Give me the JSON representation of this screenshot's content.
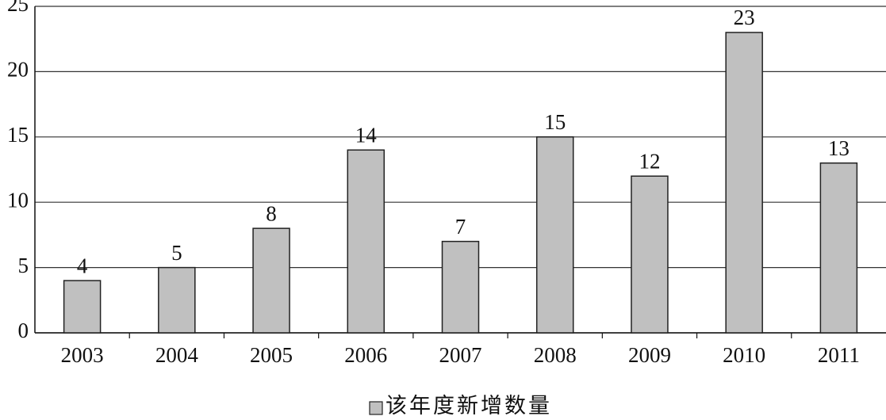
{
  "chart_data": {
    "type": "bar",
    "categories": [
      "2003",
      "2004",
      "2005",
      "2006",
      "2007",
      "2008",
      "2009",
      "2010",
      "2011"
    ],
    "series": [
      {
        "name": "该年度新增数量",
        "color": "#c0c0c0",
        "values": [
          4,
          5,
          8,
          14,
          7,
          15,
          12,
          23,
          13
        ]
      }
    ],
    "ylim": [
      0,
      25
    ],
    "yticks": [
      0,
      5,
      10,
      15,
      20,
      25
    ],
    "grid": true,
    "legend": "bottom"
  }
}
